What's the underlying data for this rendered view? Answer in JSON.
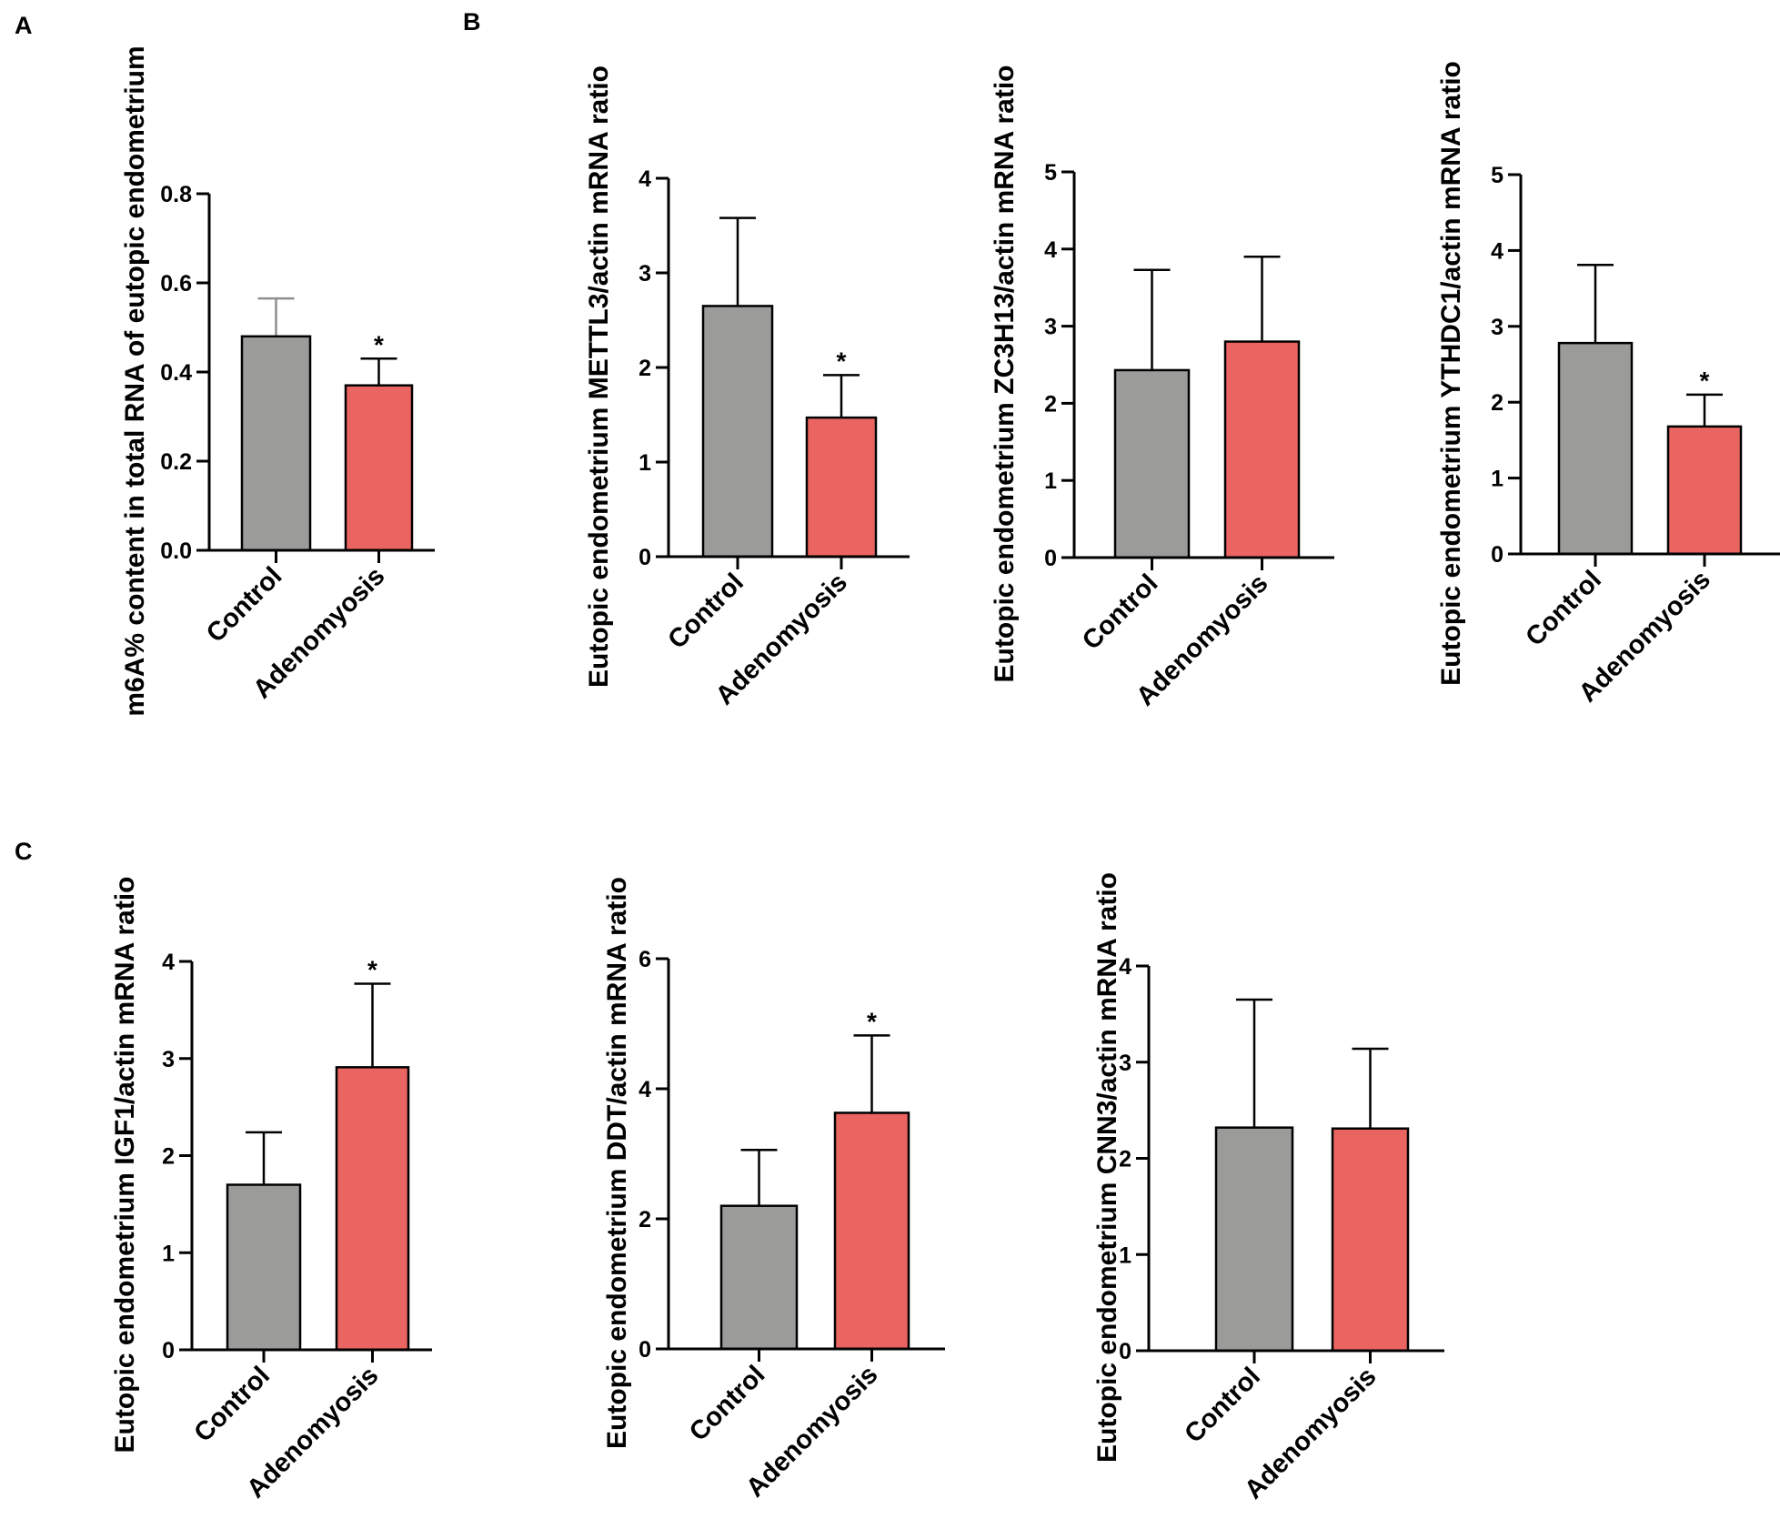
{
  "panel_labels": [
    "A",
    "B",
    "C"
  ],
  "colors": {
    "control": "#9b9b9a",
    "adenomyosis": "#ea6562",
    "axis": "#000000",
    "error_control_A": "#8f8f8f"
  },
  "chart_data": [
    {
      "type": "bar",
      "panel": "A",
      "categories": [
        "Control",
        "Adenomyosis"
      ],
      "values": [
        0.48,
        0.37
      ],
      "errors": [
        0.085,
        0.06
      ],
      "significance": [
        "",
        "*"
      ],
      "ylabel": "m6A% content in total RNA of eutopic endometrium",
      "ylim": [
        0,
        0.8
      ],
      "yticks": [
        "0.0",
        "0.2",
        "0.4",
        "0.6",
        "0.8"
      ]
    },
    {
      "type": "bar",
      "panel": "B",
      "categories": [
        "Control",
        "Adenomyosis"
      ],
      "values": [
        2.65,
        1.47
      ],
      "errors": [
        0.93,
        0.45
      ],
      "significance": [
        "",
        "*"
      ],
      "ylabel": "Eutopic endometrium METTL3/actin mRNA ratio",
      "ylim": [
        0,
        4
      ],
      "yticks": [
        "0",
        "1",
        "2",
        "3",
        "4"
      ]
    },
    {
      "type": "bar",
      "panel": "B",
      "categories": [
        "Control",
        "Adenomyosis"
      ],
      "values": [
        2.43,
        2.8
      ],
      "errors": [
        1.3,
        1.1
      ],
      "significance": [
        "",
        ""
      ],
      "ylabel": "Eutopic endometrium ZC3H13/actin mRNA ratio",
      "ylim": [
        0,
        5
      ],
      "yticks": [
        "0",
        "1",
        "2",
        "3",
        "4",
        "5"
      ]
    },
    {
      "type": "bar",
      "panel": "B",
      "categories": [
        "Control",
        "Adenomyosis"
      ],
      "values": [
        2.78,
        1.68
      ],
      "errors": [
        1.03,
        0.42
      ],
      "significance": [
        "",
        "*"
      ],
      "ylabel": "Eutopic endometrium YTHDC1/actin mRNA ratio",
      "ylim": [
        0,
        5
      ],
      "yticks": [
        "0",
        "1",
        "2",
        "3",
        "4",
        "5"
      ]
    },
    {
      "type": "bar",
      "panel": "C",
      "categories": [
        "Control",
        "Adenomyosis"
      ],
      "values": [
        1.7,
        2.91
      ],
      "errors": [
        0.54,
        0.86
      ],
      "significance": [
        "",
        "*"
      ],
      "ylabel": "Eutopic endometrium IGF1/actin mRNA ratio",
      "ylim": [
        0,
        4
      ],
      "yticks": [
        "0",
        "1",
        "2",
        "3",
        "4"
      ]
    },
    {
      "type": "bar",
      "panel": "C",
      "categories": [
        "Control",
        "Adenomyosis"
      ],
      "values": [
        2.2,
        3.63
      ],
      "errors": [
        0.86,
        1.19
      ],
      "significance": [
        "",
        "*"
      ],
      "ylabel": "Eutopic endometrium DDT/actin mRNA ratio",
      "ylim": [
        0,
        6
      ],
      "yticks": [
        "0",
        "2",
        "4",
        "6"
      ]
    },
    {
      "type": "bar",
      "panel": "C",
      "categories": [
        "Control",
        "Adenomyosis"
      ],
      "values": [
        2.32,
        2.31
      ],
      "errors": [
        1.33,
        0.83
      ],
      "significance": [
        "",
        ""
      ],
      "ylabel": "Eutopic endometrium CNN3/actin mRNA ratio",
      "ylim": [
        0,
        4
      ],
      "yticks": [
        "0",
        "1",
        "2",
        "3",
        "4"
      ]
    }
  ]
}
